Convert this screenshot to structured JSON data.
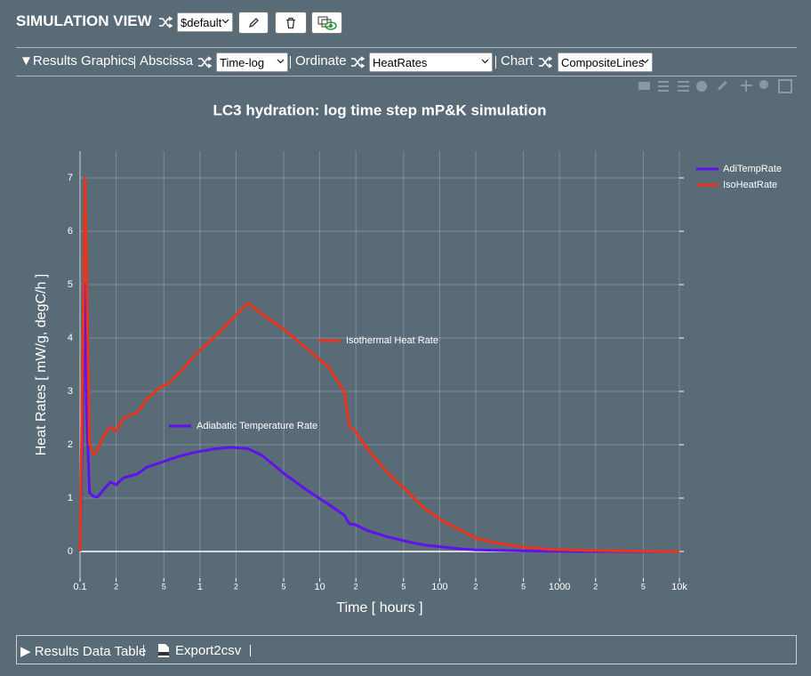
{
  "header": {
    "title": "SIMULATION VIEW",
    "view": "$default"
  },
  "controls": {
    "section": "Results Graphics",
    "abscissa_label": "Abscissa",
    "abscissa": "Time-log",
    "ordinate_label": "Ordinate",
    "ordinate": "HeatRates",
    "chart_label": "Chart",
    "chart": "CompositeLines"
  },
  "chart_data": {
    "type": "line",
    "title": "LC3 hydration: log time step mP&K simulation",
    "x_label": "Time [ hours ]",
    "y_label": "Heat Rates [ mW/g, degC/h ]",
    "x_scale": "log",
    "grid": true,
    "legend": "top-right",
    "xlim": [
      0.1,
      10000
    ],
    "xticks": [
      0.1,
      {
        "value": 0.2,
        "label": "2"
      },
      {
        "value": 0.5,
        "label": "5"
      },
      1,
      {
        "value": 2,
        "label": "2"
      },
      {
        "value": 5,
        "label": "5"
      },
      10,
      {
        "value": 20,
        "label": "2"
      },
      {
        "value": 50,
        "label": "5"
      },
      100,
      {
        "value": 200,
        "label": "2"
      },
      {
        "value": 500,
        "label": "5"
      },
      1000,
      {
        "value": 2000,
        "label": "2"
      },
      {
        "value": 5000,
        "label": "5"
      },
      {
        "value": 10000,
        "label": "10k"
      }
    ],
    "ylim": [
      -0.5,
      7.5
    ],
    "yticks": [
      0,
      1,
      2,
      3,
      4,
      5,
      6,
      7
    ],
    "x": [
      0.1,
      0.105,
      0.11,
      0.114,
      0.12,
      0.13,
      0.14,
      0.16,
      0.18,
      0.2,
      0.23,
      0.3,
      0.36,
      0.45,
      0.55,
      0.71,
      0.92,
      1.3,
      1.76,
      2.5,
      3.3,
      5.1,
      7.8,
      11.9,
      14.9,
      16,
      17.6,
      19.9,
      24.4,
      36,
      55,
      75,
      110,
      150,
      200,
      305,
      510,
      850,
      1700,
      3300,
      10000
    ],
    "series": [
      {
        "name": "AdiTempRate",
        "color": "#5f12ee",
        "values": [
          0,
          2.5,
          5,
          2.5,
          1.1,
          1.03,
          1.02,
          1.18,
          1.3,
          1.25,
          1.38,
          1.45,
          1.58,
          1.65,
          1.72,
          1.8,
          1.86,
          1.92,
          1.95,
          1.93,
          1.8,
          1.45,
          1.15,
          0.88,
          0.73,
          0.68,
          0.52,
          0.5,
          0.4,
          0.28,
          0.18,
          0.12,
          0.08,
          0.05,
          0.03,
          0.02,
          0.01,
          0.005,
          0,
          0,
          0
        ]
      },
      {
        "name": "IsoHeatRate",
        "color": "#e8361c",
        "values": [
          0,
          3.5,
          7,
          5,
          2,
          1.82,
          1.9,
          2.2,
          2.33,
          2.25,
          2.5,
          2.6,
          2.85,
          3.05,
          3.15,
          3.4,
          3.7,
          4.0,
          4.3,
          4.65,
          4.45,
          4.15,
          3.8,
          3.45,
          3.1,
          3.0,
          2.35,
          2.25,
          1.95,
          1.5,
          1.1,
          0.8,
          0.55,
          0.4,
          0.25,
          0.15,
          0.08,
          0.04,
          0.02,
          0.01,
          0
        ]
      }
    ],
    "annotations": [
      "Isothermal Heat Rate",
      "Adiabatic Temperature Rate"
    ]
  },
  "footer": {
    "section": "Results Data Table",
    "export": "Export2csv"
  }
}
